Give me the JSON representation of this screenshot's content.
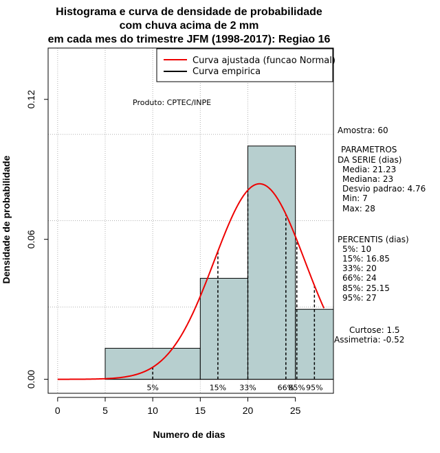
{
  "chart_data": {
    "type": "histogram",
    "title_lines": [
      "Histograma e curva de densidade de probabilidade",
      "com chuva acima de 2 mm",
      "em cada mes do trimestre JFM (1998-2017): Regiao 16"
    ],
    "xlabel": "Numero de dias",
    "ylabel": "Densidade de probabilidade",
    "xlim": [
      -1,
      29
    ],
    "ylim": [
      -0.006,
      0.142
    ],
    "x_ticks": [
      0,
      5,
      10,
      15,
      20,
      25
    ],
    "y_ticks": [
      0.0,
      0.06,
      0.12
    ],
    "y_tick_labels": [
      "0.00",
      "0.06",
      "0.12"
    ],
    "bars": [
      {
        "x0": 5,
        "x1": 15,
        "density": 0.0133
      },
      {
        "x0": 15,
        "x1": 20,
        "density": 0.0433
      },
      {
        "x0": 20,
        "x1": 25,
        "density": 0.1
      },
      {
        "x0": 25,
        "x1": 29,
        "density": 0.03
      }
    ],
    "normal_fit": {
      "mean": 21.23,
      "sd": 4.76,
      "x_start": 0,
      "x_end": 28
    },
    "percentile_lines": [
      {
        "label": "5%",
        "x": 10
      },
      {
        "label": "15%",
        "x": 16.85
      },
      {
        "label": "33%",
        "x": 20
      },
      {
        "label": "66%",
        "x": 24
      },
      {
        "label": "85%",
        "x": 25.15
      },
      {
        "label": "95%",
        "x": 27
      }
    ],
    "legend": [
      {
        "label": "Curva ajustada (funcao Normal)",
        "color": "#ee0000"
      },
      {
        "label": "Curva empirica",
        "color": "#000000"
      }
    ],
    "product_label": "Produto: CPTEC/INPE",
    "bar_color": "#b7cfcf",
    "side_panel": {
      "amostra": "Amostra: 60",
      "param_title_1": "PARAMETROS",
      "param_title_2": "DA SERIE (dias)",
      "media": "Media: 21.23",
      "mediana": "Mediana: 23",
      "desvio": "Desvio padrao: 4.76",
      "min": "Min: 7",
      "max": "Max: 28",
      "percentis_title": "PERCENTIS (dias)",
      "p5": "5%: 10",
      "p15": "15%: 16.85",
      "p33": "33%: 20",
      "p66": "66%: 24",
      "p85": "85%: 25.15",
      "p95": "95%: 27",
      "curtose": "Curtose: 1.5",
      "assimetria": "Assimetria: -0.52"
    }
  }
}
